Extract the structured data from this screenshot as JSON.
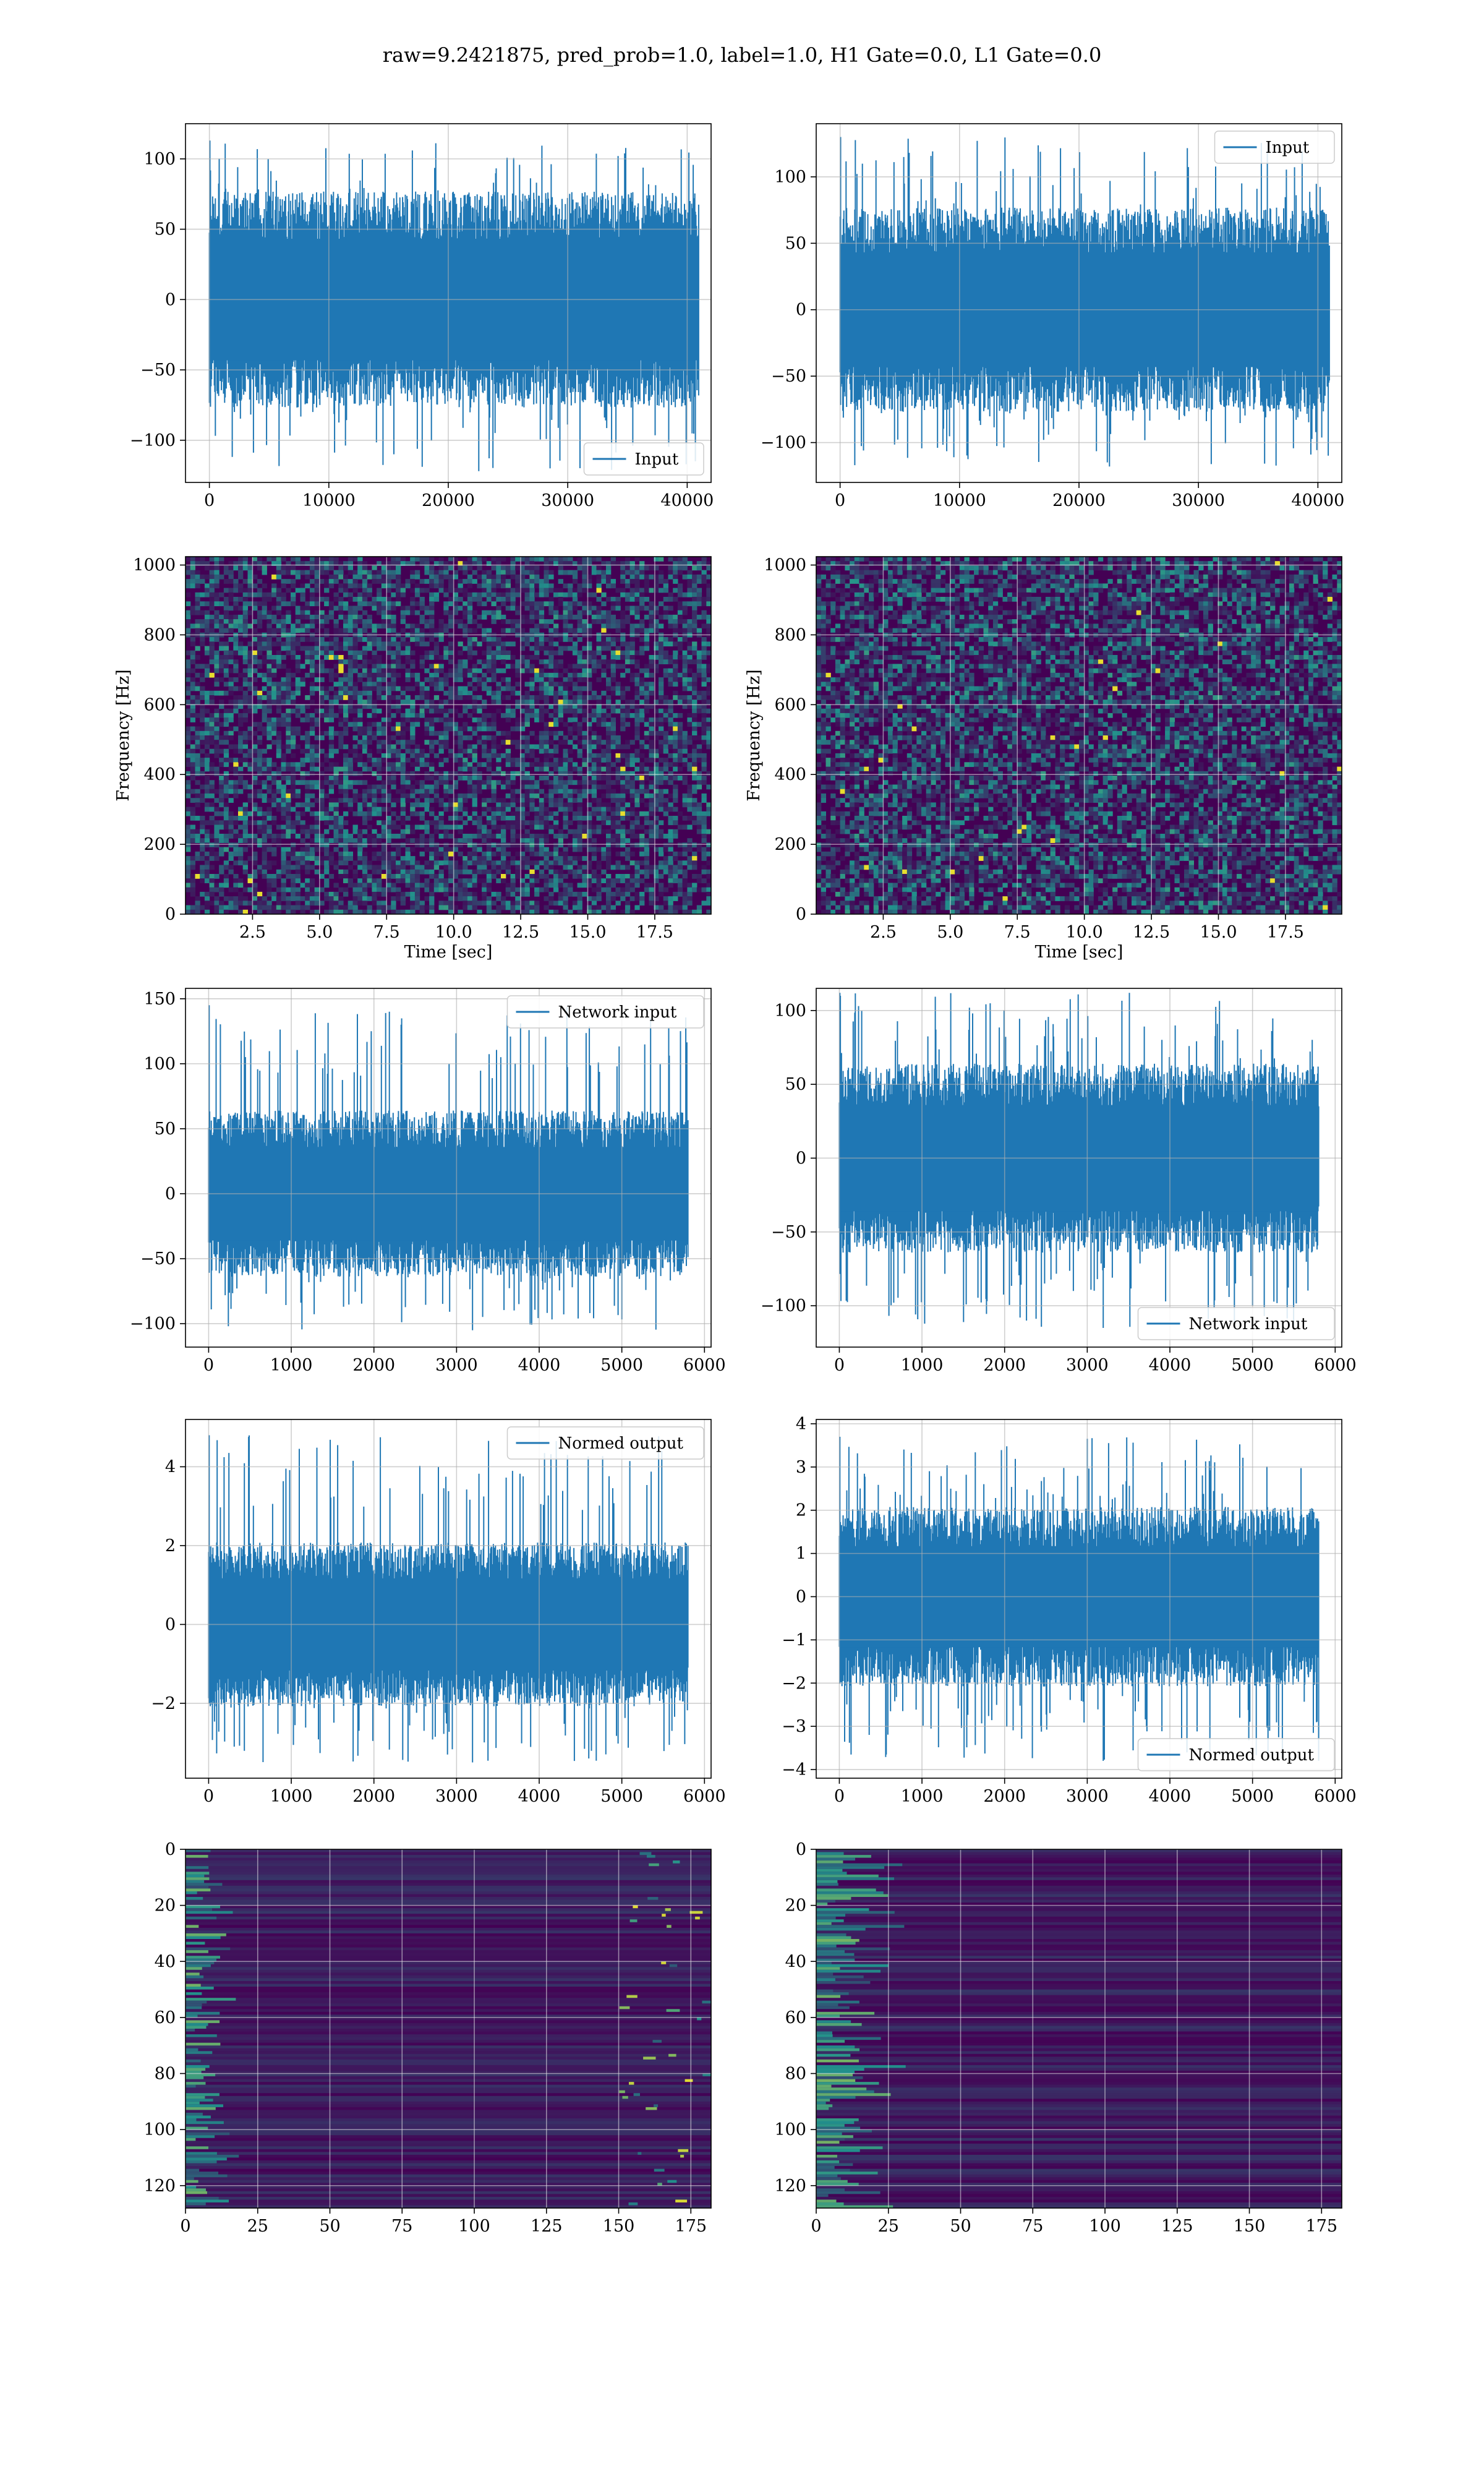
{
  "title": "raw=9.2421875, pred_prob=1.0, label=1.0, H1 Gate=0.0, L1 Gate=0.0",
  "colors": {
    "line": "#1f77b4",
    "grid": "#b0b0b0",
    "heatmap_low": "#440154",
    "heatmap_mid": "#21918c",
    "heatmap_high": "#fde725"
  },
  "chart_data": [
    {
      "type": "line",
      "row": 1,
      "col": 1,
      "legend": "Input",
      "legend_loc": "lower-right",
      "xlim": [
        -2000,
        42000
      ],
      "ylim": [
        -130,
        125
      ],
      "xticks": [
        "0",
        "10000",
        "20000",
        "30000",
        "40000"
      ],
      "yticks": [
        "−100",
        "−50",
        "0",
        "50",
        "100"
      ],
      "xtick_values": [
        0,
        10000,
        20000,
        30000,
        40000
      ],
      "ytick_values": [
        -100,
        -50,
        0,
        50,
        100
      ],
      "x_range": [
        0,
        40960
      ],
      "body_amp": 48,
      "peak_max": 113,
      "peak_min": -122,
      "xlabel": "",
      "ylabel": ""
    },
    {
      "type": "line",
      "row": 1,
      "col": 2,
      "legend": "Input",
      "legend_loc": "upper-right",
      "xlim": [
        -2000,
        42000
      ],
      "ylim": [
        -130,
        140
      ],
      "xticks": [
        "0",
        "10000",
        "20000",
        "30000",
        "40000"
      ],
      "yticks": [
        "−100",
        "−50",
        "0",
        "50",
        "100"
      ],
      "xtick_values": [
        0,
        10000,
        20000,
        30000,
        40000
      ],
      "ytick_values": [
        -100,
        -50,
        0,
        50,
        100
      ],
      "x_range": [
        0,
        40960
      ],
      "body_amp": 48,
      "peak_max": 130,
      "peak_min": -118,
      "xlabel": "",
      "ylabel": ""
    },
    {
      "type": "heatmap",
      "row": 2,
      "col": 1,
      "xlim": [
        0,
        19.6
      ],
      "ylim": [
        0,
        1024
      ],
      "xticks": [
        "2.5",
        "5.0",
        "7.5",
        "10.0",
        "12.5",
        "15.0",
        "17.5"
      ],
      "yticks": [
        "0",
        "200",
        "400",
        "600",
        "800",
        "1000"
      ],
      "xtick_values": [
        2.5,
        5.0,
        7.5,
        10.0,
        12.5,
        15.0,
        17.5
      ],
      "ytick_values": [
        0,
        200,
        400,
        600,
        800,
        1000
      ],
      "xlabel": "Time [sec]",
      "ylabel": "Frequency [Hz]"
    },
    {
      "type": "heatmap",
      "row": 2,
      "col": 2,
      "xlim": [
        0,
        19.6
      ],
      "ylim": [
        0,
        1024
      ],
      "xticks": [
        "2.5",
        "5.0",
        "7.5",
        "10.0",
        "12.5",
        "15.0",
        "17.5"
      ],
      "yticks": [
        "0",
        "200",
        "400",
        "600",
        "800",
        "1000"
      ],
      "xtick_values": [
        2.5,
        5.0,
        7.5,
        10.0,
        12.5,
        15.0,
        17.5
      ],
      "ytick_values": [
        0,
        200,
        400,
        600,
        800,
        1000
      ],
      "xlabel": "Time [sec]",
      "ylabel": "Frequency [Hz]"
    },
    {
      "type": "line",
      "row": 3,
      "col": 1,
      "legend": "Network input",
      "legend_loc": "upper-right",
      "xlim": [
        -280,
        6080
      ],
      "ylim": [
        -118,
        158
      ],
      "xticks": [
        "0",
        "1000",
        "2000",
        "3000",
        "4000",
        "5000",
        "6000"
      ],
      "yticks": [
        "−100",
        "−50",
        "0",
        "50",
        "100",
        "150"
      ],
      "xtick_values": [
        0,
        1000,
        2000,
        3000,
        4000,
        5000,
        6000
      ],
      "ytick_values": [
        -100,
        -50,
        0,
        50,
        100,
        150
      ],
      "x_range": [
        0,
        5800
      ],
      "body_amp": 40,
      "peak_max": 145,
      "peak_min": -105,
      "xlabel": "",
      "ylabel": ""
    },
    {
      "type": "line",
      "row": 3,
      "col": 2,
      "legend": "Network input",
      "legend_loc": "lower-right",
      "xlim": [
        -280,
        6080
      ],
      "ylim": [
        -128,
        115
      ],
      "xticks": [
        "0",
        "1000",
        "2000",
        "3000",
        "4000",
        "5000",
        "6000"
      ],
      "yticks": [
        "−100",
        "−50",
        "0",
        "50",
        "100"
      ],
      "xtick_values": [
        0,
        1000,
        2000,
        3000,
        4000,
        5000,
        6000
      ],
      "ytick_values": [
        -100,
        -50,
        0,
        50,
        100
      ],
      "x_range": [
        0,
        5800
      ],
      "body_amp": 40,
      "peak_max": 112,
      "peak_min": -115,
      "xlabel": "",
      "ylabel": ""
    },
    {
      "type": "line",
      "row": 4,
      "col": 1,
      "legend": "Normed output",
      "legend_loc": "upper-right",
      "xlim": [
        -280,
        6080
      ],
      "ylim": [
        -3.9,
        5.2
      ],
      "xticks": [
        "0",
        "1000",
        "2000",
        "3000",
        "4000",
        "5000",
        "6000"
      ],
      "yticks": [
        "−2",
        "0",
        "2",
        "4"
      ],
      "xtick_values": [
        0,
        1000,
        2000,
        3000,
        4000,
        5000,
        6000
      ],
      "ytick_values": [
        -2,
        0,
        2,
        4
      ],
      "x_range": [
        0,
        5800
      ],
      "body_amp": 1.3,
      "peak_max": 4.8,
      "peak_min": -3.5,
      "xlabel": "",
      "ylabel": ""
    },
    {
      "type": "line",
      "row": 4,
      "col": 2,
      "legend": "Normed output",
      "legend_loc": "lower-right",
      "xlim": [
        -280,
        6080
      ],
      "ylim": [
        -4.2,
        4.1
      ],
      "xticks": [
        "0",
        "1000",
        "2000",
        "3000",
        "4000",
        "5000",
        "6000"
      ],
      "yticks": [
        "−4",
        "−3",
        "−2",
        "−1",
        "0",
        "1",
        "2",
        "3",
        "4"
      ],
      "xtick_values": [
        0,
        1000,
        2000,
        3000,
        4000,
        5000,
        6000
      ],
      "ytick_values": [
        -4,
        -3,
        -2,
        -1,
        0,
        1,
        2,
        3,
        4
      ],
      "x_range": [
        0,
        5800
      ],
      "body_amp": 1.3,
      "peak_max": 3.7,
      "peak_min": -3.8,
      "xlabel": "",
      "ylabel": ""
    },
    {
      "type": "heatmap",
      "row": 5,
      "col": 1,
      "xlim": [
        0,
        182
      ],
      "ylim": [
        128,
        0
      ],
      "xticks": [
        "0",
        "25",
        "50",
        "75",
        "100",
        "125",
        "150",
        "175"
      ],
      "yticks": [
        "0",
        "20",
        "40",
        "60",
        "80",
        "100",
        "120"
      ],
      "xtick_values": [
        0,
        25,
        50,
        75,
        100,
        125,
        150,
        175
      ],
      "ytick_values": [
        0,
        20,
        40,
        60,
        80,
        100,
        120
      ],
      "xlabel": "",
      "ylabel": ""
    },
    {
      "type": "heatmap",
      "row": 5,
      "col": 2,
      "xlim": [
        0,
        182
      ],
      "ylim": [
        128,
        0
      ],
      "xticks": [
        "0",
        "25",
        "50",
        "75",
        "100",
        "125",
        "150",
        "175"
      ],
      "yticks": [
        "0",
        "20",
        "40",
        "60",
        "80",
        "100",
        "120"
      ],
      "xtick_values": [
        0,
        25,
        50,
        75,
        100,
        125,
        150,
        175
      ],
      "ytick_values": [
        0,
        20,
        40,
        60,
        80,
        100,
        120
      ],
      "xlabel": "",
      "ylabel": ""
    }
  ]
}
